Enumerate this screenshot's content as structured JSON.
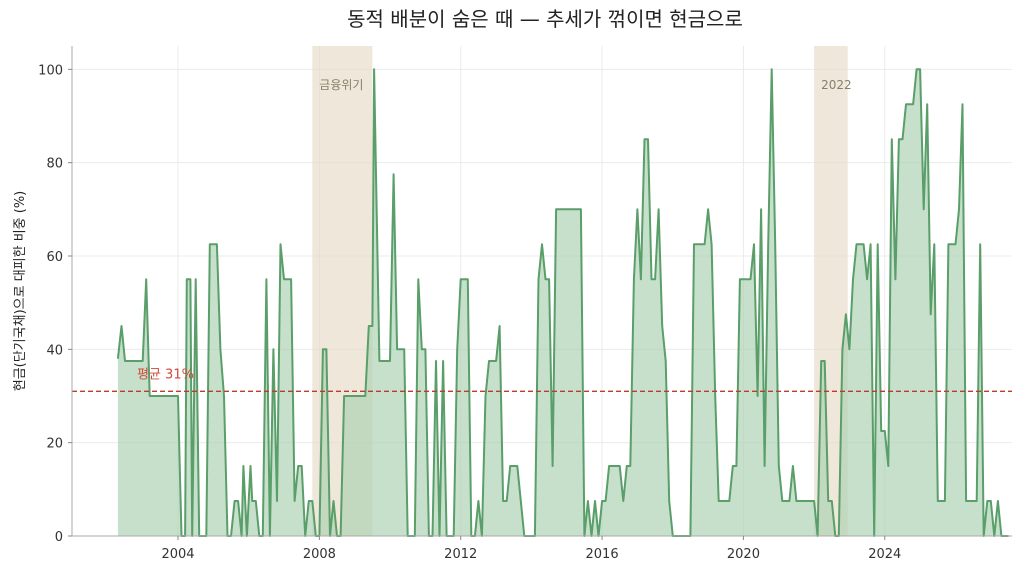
{
  "chart_data": {
    "type": "area",
    "title": "동적 배분이 숨은 때 — 추세가 꺾이면 현금으로",
    "ylabel": "현금(단기국채)으로 대피한 비중 (%)",
    "xlabel": "",
    "xlim": [
      2001.0,
      2027.6
    ],
    "ylim": [
      0,
      105
    ],
    "xticks": [
      2004,
      2008,
      2012,
      2016,
      2020,
      2024
    ],
    "yticks": [
      0,
      20,
      40,
      60,
      80,
      100
    ],
    "grid": true,
    "series_color": "#5a9e6a",
    "fill_color": "#a9d0b1",
    "shade_color": "#e7dcc6",
    "mean_color": "#c0392b",
    "mean": {
      "value": 31,
      "label": "평균 31%"
    },
    "shaded_regions": [
      {
        "x0": 2007.8,
        "x1": 2009.5,
        "label": "금융위기"
      },
      {
        "x0": 2022.0,
        "x1": 2022.95,
        "label": "2022"
      }
    ],
    "series": [
      {
        "values": [
          [
            2002.3,
            38
          ],
          [
            2002.4,
            45
          ],
          [
            2002.5,
            37.5
          ],
          [
            2002.9,
            37.5
          ],
          [
            2003.0,
            37.5
          ],
          [
            2003.1,
            55
          ],
          [
            2003.2,
            30
          ],
          [
            2003.5,
            30
          ],
          [
            2003.8,
            30
          ],
          [
            2004.0,
            30
          ],
          [
            2004.1,
            0
          ],
          [
            2004.2,
            0
          ],
          [
            2004.25,
            55
          ],
          [
            2004.35,
            55
          ],
          [
            2004.4,
            0
          ],
          [
            2004.5,
            55
          ],
          [
            2004.6,
            0
          ],
          [
            2004.8,
            0
          ],
          [
            2004.9,
            62.5
          ],
          [
            2005.1,
            62.5
          ],
          [
            2005.2,
            40
          ],
          [
            2005.3,
            30
          ],
          [
            2005.4,
            0
          ],
          [
            2005.5,
            0
          ],
          [
            2005.6,
            7.5
          ],
          [
            2005.7,
            7.5
          ],
          [
            2005.8,
            0
          ],
          [
            2005.85,
            15
          ],
          [
            2005.95,
            0
          ],
          [
            2006.05,
            15
          ],
          [
            2006.1,
            7.5
          ],
          [
            2006.2,
            7.5
          ],
          [
            2006.3,
            0
          ],
          [
            2006.4,
            0
          ],
          [
            2006.5,
            55
          ],
          [
            2006.6,
            0
          ],
          [
            2006.7,
            40
          ],
          [
            2006.8,
            7.5
          ],
          [
            2006.9,
            62.5
          ],
          [
            2007.0,
            55
          ],
          [
            2007.2,
            55
          ],
          [
            2007.3,
            7.5
          ],
          [
            2007.4,
            15
          ],
          [
            2007.5,
            15
          ],
          [
            2007.6,
            0
          ],
          [
            2007.7,
            7.5
          ],
          [
            2007.8,
            7.5
          ],
          [
            2007.9,
            0
          ],
          [
            2008.0,
            0
          ],
          [
            2008.1,
            40
          ],
          [
            2008.2,
            40
          ],
          [
            2008.3,
            0
          ],
          [
            2008.4,
            7.5
          ],
          [
            2008.5,
            0
          ],
          [
            2008.6,
            0
          ],
          [
            2008.7,
            30
          ],
          [
            2009.0,
            30
          ],
          [
            2009.3,
            30
          ],
          [
            2009.4,
            45
          ],
          [
            2009.5,
            45
          ],
          [
            2009.55,
            100
          ],
          [
            2009.7,
            37.5
          ],
          [
            2010.0,
            37.5
          ],
          [
            2010.1,
            77.5
          ],
          [
            2010.2,
            40
          ],
          [
            2010.4,
            40
          ],
          [
            2010.5,
            0
          ],
          [
            2010.7,
            0
          ],
          [
            2010.8,
            55
          ],
          [
            2010.9,
            40
          ],
          [
            2011.0,
            40
          ],
          [
            2011.1,
            0
          ],
          [
            2011.2,
            0
          ],
          [
            2011.3,
            37.5
          ],
          [
            2011.4,
            0
          ],
          [
            2011.5,
            37.5
          ],
          [
            2011.6,
            0
          ],
          [
            2011.8,
            0
          ],
          [
            2011.9,
            40
          ],
          [
            2012.0,
            55
          ],
          [
            2012.2,
            55
          ],
          [
            2012.3,
            0
          ],
          [
            2012.4,
            0
          ],
          [
            2012.5,
            7.5
          ],
          [
            2012.6,
            0
          ],
          [
            2012.7,
            30
          ],
          [
            2012.8,
            37.5
          ],
          [
            2013.0,
            37.5
          ],
          [
            2013.1,
            45
          ],
          [
            2013.2,
            7.5
          ],
          [
            2013.3,
            7.5
          ],
          [
            2013.4,
            15
          ],
          [
            2013.6,
            15
          ],
          [
            2013.7,
            7.5
          ],
          [
            2013.8,
            0
          ],
          [
            2014.0,
            0
          ],
          [
            2014.1,
            0
          ],
          [
            2014.2,
            55
          ],
          [
            2014.3,
            62.5
          ],
          [
            2014.4,
            55
          ],
          [
            2014.5,
            55
          ],
          [
            2014.6,
            15
          ],
          [
            2014.7,
            70
          ],
          [
            2014.9,
            70
          ],
          [
            2015.2,
            70
          ],
          [
            2015.4,
            70
          ],
          [
            2015.5,
            0
          ],
          [
            2015.6,
            7.5
          ],
          [
            2015.7,
            0
          ],
          [
            2015.8,
            7.5
          ],
          [
            2015.9,
            0
          ],
          [
            2016.0,
            7.5
          ],
          [
            2016.1,
            7.5
          ],
          [
            2016.2,
            15
          ],
          [
            2016.5,
            15
          ],
          [
            2016.6,
            7.5
          ],
          [
            2016.7,
            15
          ],
          [
            2016.8,
            15
          ],
          [
            2016.9,
            55
          ],
          [
            2017.0,
            70
          ],
          [
            2017.1,
            55
          ],
          [
            2017.2,
            85
          ],
          [
            2017.3,
            85
          ],
          [
            2017.4,
            55
          ],
          [
            2017.5,
            55
          ],
          [
            2017.6,
            70
          ],
          [
            2017.7,
            45
          ],
          [
            2017.8,
            37.5
          ],
          [
            2017.9,
            7.5
          ],
          [
            2018.0,
            0
          ],
          [
            2018.5,
            0
          ],
          [
            2018.6,
            62.5
          ],
          [
            2018.8,
            62.5
          ],
          [
            2018.9,
            62.5
          ],
          [
            2019.0,
            70
          ],
          [
            2019.1,
            62.5
          ],
          [
            2019.2,
            30
          ],
          [
            2019.3,
            7.5
          ],
          [
            2019.6,
            7.5
          ],
          [
            2019.7,
            15
          ],
          [
            2019.8,
            15
          ],
          [
            2019.9,
            55
          ],
          [
            2020.2,
            55
          ],
          [
            2020.3,
            62.5
          ],
          [
            2020.4,
            30
          ],
          [
            2020.5,
            70
          ],
          [
            2020.6,
            15
          ],
          [
            2020.7,
            62.5
          ],
          [
            2020.8,
            100
          ],
          [
            2020.9,
            62.5
          ],
          [
            2021.0,
            15
          ],
          [
            2021.1,
            7.5
          ],
          [
            2021.3,
            7.5
          ],
          [
            2021.4,
            15
          ],
          [
            2021.5,
            7.5
          ],
          [
            2021.6,
            7.5
          ],
          [
            2021.8,
            7.5
          ],
          [
            2022.0,
            7.5
          ],
          [
            2022.1,
            0
          ],
          [
            2022.2,
            37.5
          ],
          [
            2022.3,
            37.5
          ],
          [
            2022.4,
            7.5
          ],
          [
            2022.5,
            7.5
          ],
          [
            2022.6,
            0
          ],
          [
            2022.7,
            0
          ],
          [
            2022.8,
            40
          ],
          [
            2022.9,
            47.5
          ],
          [
            2023.0,
            40
          ],
          [
            2023.1,
            55
          ],
          [
            2023.2,
            62.5
          ],
          [
            2023.4,
            62.5
          ],
          [
            2023.5,
            55
          ],
          [
            2023.6,
            62.5
          ],
          [
            2023.7,
            0
          ],
          [
            2023.8,
            62.5
          ],
          [
            2023.9,
            22.5
          ],
          [
            2024.0,
            22.5
          ],
          [
            2024.1,
            15
          ],
          [
            2024.2,
            85
          ],
          [
            2024.3,
            55
          ],
          [
            2024.4,
            85
          ],
          [
            2024.5,
            85
          ],
          [
            2024.6,
            92.5
          ],
          [
            2024.8,
            92.5
          ],
          [
            2024.9,
            100
          ],
          [
            2025.0,
            100
          ],
          [
            2025.1,
            70
          ],
          [
            2025.2,
            92.5
          ],
          [
            2025.3,
            47.5
          ],
          [
            2025.4,
            62.5
          ],
          [
            2025.5,
            7.5
          ],
          [
            2025.6,
            7.5
          ],
          [
            2025.7,
            7.5
          ],
          [
            2025.8,
            62.5
          ],
          [
            2026.0,
            62.5
          ],
          [
            2026.1,
            70
          ],
          [
            2026.2,
            92.5
          ],
          [
            2026.3,
            7.5
          ],
          [
            2026.5,
            7.5
          ],
          [
            2026.6,
            7.5
          ],
          [
            2026.7,
            62.5
          ],
          [
            2026.8,
            0
          ],
          [
            2026.9,
            7.5
          ],
          [
            2027.0,
            7.5
          ],
          [
            2027.1,
            0
          ],
          [
            2027.2,
            7.5
          ],
          [
            2027.3,
            0
          ],
          [
            2027.4,
            0
          ],
          [
            2027.5,
            0
          ]
        ]
      }
    ]
  }
}
